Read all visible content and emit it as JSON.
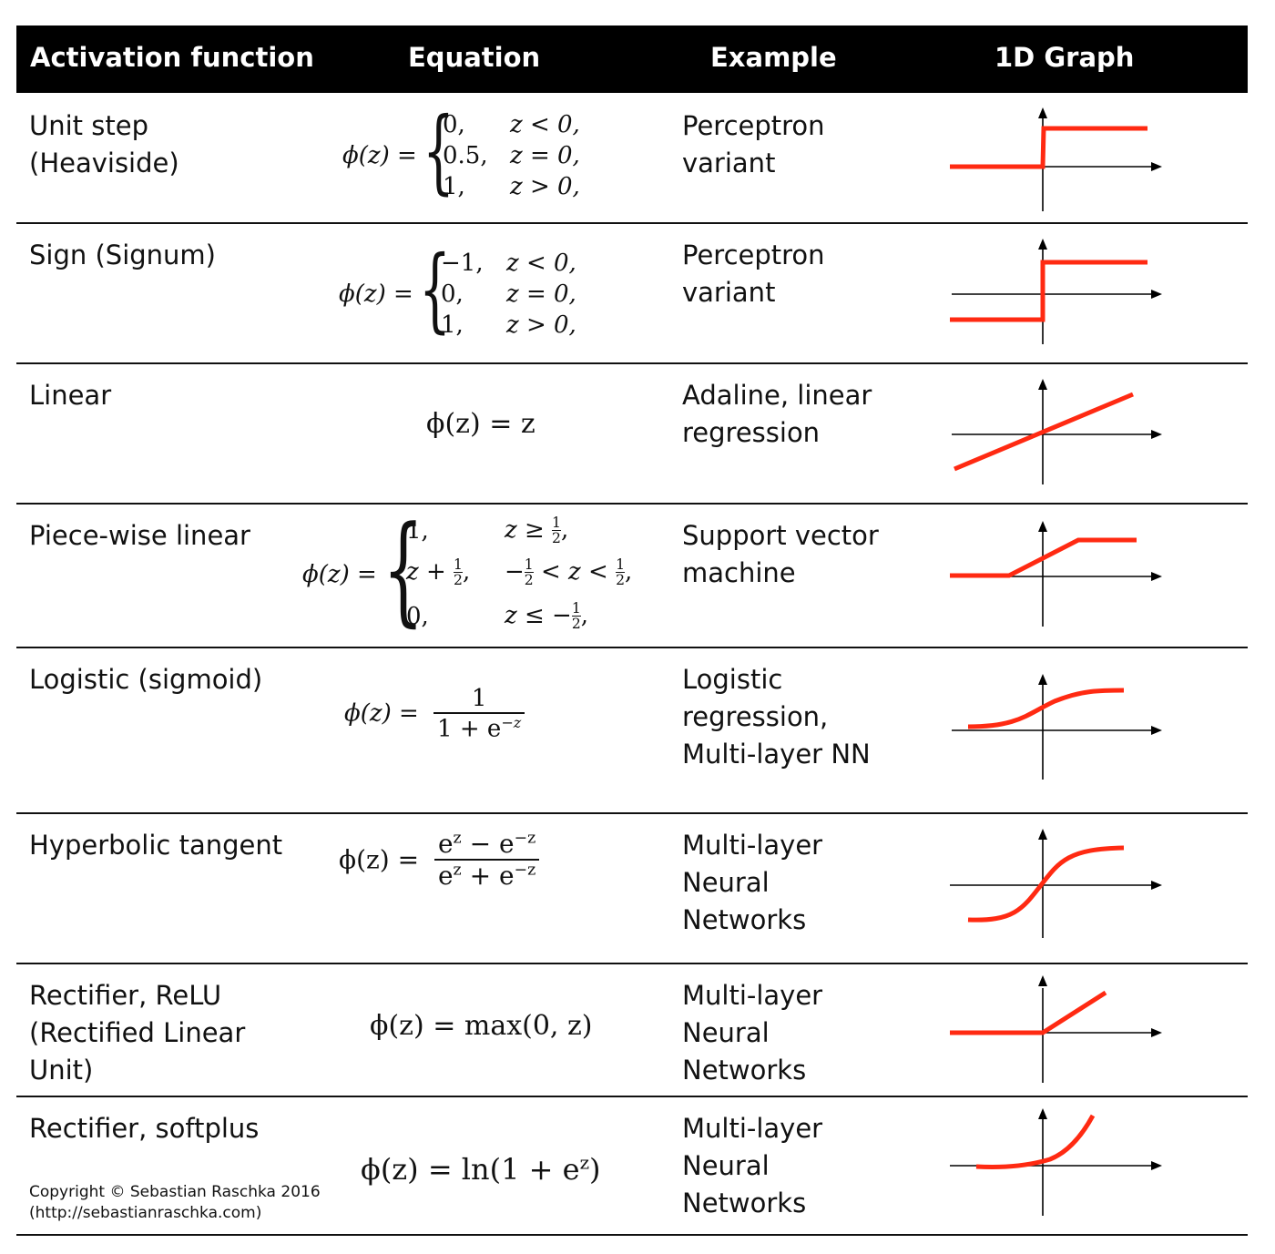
{
  "header": {
    "col1": "Activation function",
    "col2": "Equation",
    "col3": "Example",
    "col4": "1D Graph"
  },
  "rows": [
    {
      "name": "Unit step\n(Heaviside)",
      "example": "Perceptron\nvariant",
      "eq": {
        "lhs": "ϕ(z) =",
        "cases": [
          [
            "0,",
            "z < 0,"
          ],
          [
            "0.5,",
            "z = 0,"
          ],
          [
            "1,",
            "z > 0,"
          ]
        ]
      }
    },
    {
      "name": "Sign (Signum)",
      "example": "Perceptron\nvariant",
      "eq": {
        "lhs": "ϕ(z) =",
        "cases": [
          [
            "−1,",
            "z < 0,"
          ],
          [
            "0,",
            "z = 0,"
          ],
          [
            "1,",
            "z > 0,"
          ]
        ]
      }
    },
    {
      "name": "Linear",
      "example": "Adaline, linear\nregression",
      "eq": {
        "text": "ϕ(z) = z"
      }
    },
    {
      "name": "Piece-wise linear",
      "example": "Support vector\nmachine",
      "eq": {
        "lhs": "ϕ(z) ="
      }
    },
    {
      "name": "Logistic (sigmoid)",
      "example": "Logistic\nregression,\nMulti-layer NN",
      "eq": {
        "lhs": "ϕ(z) =",
        "num": "1",
        "den": "1 + e",
        "den_sup": "−z"
      }
    },
    {
      "name": "Hyperbolic tangent",
      "example": "Multi-layer\nNeural\nNetworks",
      "eq": {
        "lhs": "ϕ(z) ="
      }
    },
    {
      "name": "Rectifier, ReLU\n(Rectified Linear\nUnit)",
      "example": "Multi-layer\nNeural\nNetworks",
      "eq": {
        "text": "ϕ(z) = max(0, z)"
      }
    },
    {
      "name": "Rectifier, softplus",
      "example": "Multi-layer\nNeural\nNetworks",
      "eq": {
        "text": "ϕ(z) = ln(1 + e",
        "sup": "z",
        "tail": ")"
      }
    }
  ],
  "copyright": {
    "line1": "Copyright © Sebastian Raschka 2016",
    "line2": "(http://sebastianraschka.com)"
  },
  "colors": {
    "header_bg": "#000000",
    "curve": "#ff2a12"
  }
}
